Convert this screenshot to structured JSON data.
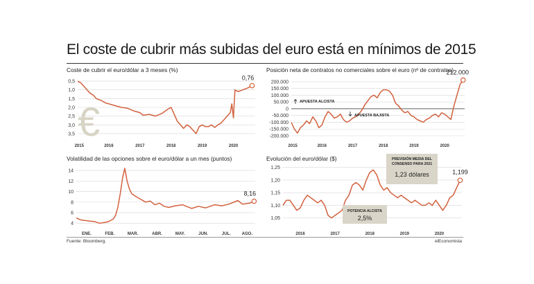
{
  "title": "El coste de cubrir más subidas del euro está en mínimos de 2015",
  "source": "Fuente: Bloomberg.",
  "brand": "elEconomista",
  "colors": {
    "series": "#d2603d",
    "grid": "#d6d6d6",
    "box": "#d9d5c8"
  },
  "chart_data": [
    {
      "type": "line",
      "title": "Coste de cubrir el euro/dólar a 3 meses (%)",
      "x_ticks": [
        "2015",
        "2016",
        "2017",
        "2018",
        "2019",
        "2020"
      ],
      "y_ticks": [
        "0,5",
        "1,0",
        "1,5",
        "2,0",
        "2,5",
        "3,0",
        "3,5"
      ],
      "ylim": [
        3.7,
        0.3
      ],
      "y_inverted": true,
      "x": [
        2015.0,
        2015.1,
        2015.2,
        2015.3,
        2015.4,
        2015.5,
        2015.6,
        2015.75,
        2015.9,
        2016.0,
        2016.2,
        2016.4,
        2016.6,
        2016.8,
        2017.0,
        2017.1,
        2017.3,
        2017.5,
        2017.7,
        2017.9,
        2018.0,
        2018.1,
        2018.2,
        2018.3,
        2018.4,
        2018.5,
        2018.6,
        2018.7,
        2018.8,
        2018.9,
        2019.0,
        2019.1,
        2019.2,
        2019.3,
        2019.4,
        2019.5,
        2019.6,
        2019.7,
        2019.8,
        2019.9,
        2019.95,
        2020.0,
        2020.05,
        2020.15,
        2020.3,
        2020.45,
        2020.6
      ],
      "values": [
        0.5,
        0.6,
        0.8,
        1.0,
        1.2,
        1.3,
        1.5,
        1.6,
        1.75,
        1.8,
        1.9,
        2.0,
        2.05,
        2.2,
        2.3,
        2.45,
        2.4,
        2.5,
        2.35,
        2.1,
        2.0,
        2.4,
        2.8,
        3.0,
        3.2,
        3.0,
        3.1,
        3.3,
        3.5,
        3.1,
        3.0,
        3.1,
        3.1,
        3.0,
        3.15,
        3.0,
        2.9,
        2.7,
        2.5,
        2.3,
        1.8,
        2.6,
        1.0,
        1.1,
        1.0,
        0.9,
        0.76
      ],
      "end_label": "0,76",
      "watermark": "€"
    },
    {
      "type": "line",
      "title": "Posición neta de contratos no comerciales sobre el euro (nº de contratos)",
      "x_ticks": [
        "2015",
        "2016",
        "2017",
        "2018",
        "2019",
        "2020"
      ],
      "y_ticks": [
        "200.000",
        "150.000",
        "100.000",
        "50.000",
        "0",
        "-50.000",
        "-100.000",
        "-150.000",
        "-200.000"
      ],
      "ylim": [
        -200000,
        220000
      ],
      "x": [
        2015.0,
        2015.1,
        2015.2,
        2015.3,
        2015.4,
        2015.5,
        2015.6,
        2015.7,
        2015.8,
        2015.9,
        2016.0,
        2016.1,
        2016.2,
        2016.3,
        2016.4,
        2016.5,
        2016.6,
        2016.7,
        2016.8,
        2016.9,
        2017.0,
        2017.1,
        2017.2,
        2017.3,
        2017.4,
        2017.5,
        2017.6,
        2017.7,
        2017.8,
        2017.9,
        2018.0,
        2018.1,
        2018.2,
        2018.3,
        2018.4,
        2018.5,
        2018.6,
        2018.7,
        2018.8,
        2018.9,
        2019.0,
        2019.1,
        2019.2,
        2019.3,
        2019.4,
        2019.5,
        2019.6,
        2019.7,
        2019.8,
        2019.9,
        2020.0,
        2020.1,
        2020.2,
        2020.3,
        2020.4,
        2020.5,
        2020.6
      ],
      "values": [
        -100000,
        -150000,
        -180000,
        -140000,
        -120000,
        -90000,
        -110000,
        -60000,
        -90000,
        -140000,
        -120000,
        -60000,
        -20000,
        -40000,
        -70000,
        -60000,
        -40000,
        -80000,
        -100000,
        -90000,
        -70000,
        -60000,
        -40000,
        -10000,
        30000,
        60000,
        90000,
        100000,
        80000,
        120000,
        140000,
        140000,
        130000,
        100000,
        40000,
        20000,
        -10000,
        -30000,
        -20000,
        -50000,
        -60000,
        -80000,
        -90000,
        -100000,
        -80000,
        -70000,
        -50000,
        -40000,
        -60000,
        -30000,
        -40000,
        -60000,
        -80000,
        20000,
        100000,
        180000,
        212000
      ],
      "end_label": "212.000",
      "annotations": [
        "APUESTA ALCISTA",
        "APUESTA BAJISTA"
      ]
    },
    {
      "type": "line",
      "title": "Volatilidad de las opciones sobre el euro/dólar a un mes (puntos)",
      "x_ticks": [
        "ENE.",
        "FEB.",
        "MAR.",
        "ABR.",
        "MAY.",
        "JUN.",
        "JUL.",
        "AGO."
      ],
      "y_ticks": [
        "14",
        "12",
        "10",
        "8",
        "6",
        "4"
      ],
      "ylim": [
        3.5,
        14.8
      ],
      "x": [
        0,
        0.2,
        0.4,
        0.6,
        0.8,
        1.0,
        1.2,
        1.4,
        1.6,
        1.7,
        1.8,
        1.9,
        2.0,
        2.1,
        2.2,
        2.3,
        2.4,
        2.6,
        2.8,
        3.0,
        3.2,
        3.4,
        3.6,
        3.8,
        4.0,
        4.3,
        4.6,
        5.0,
        5.3,
        5.6,
        6.0,
        6.3,
        6.6,
        7.0,
        7.2,
        7.5,
        7.7
      ],
      "values": [
        5.0,
        4.6,
        4.5,
        4.4,
        4.3,
        4.0,
        4.1,
        4.3,
        4.8,
        5.5,
        7.0,
        9.5,
        12.5,
        14.4,
        12.0,
        10.5,
        9.6,
        9.0,
        8.5,
        8.0,
        8.2,
        7.5,
        7.8,
        7.2,
        7.0,
        7.3,
        7.5,
        6.8,
        7.2,
        6.9,
        7.5,
        7.3,
        7.6,
        8.3,
        7.6,
        7.8,
        8.16
      ],
      "end_label": "8,16"
    },
    {
      "type": "line",
      "title": "Evolución del euro/dólar ($)",
      "x_ticks": [
        "2016",
        "2017",
        "2018",
        "2019",
        "2020"
      ],
      "y_ticks": [
        "1,25",
        "1,20",
        "1,15",
        "1,10",
        "1,05"
      ],
      "ylim": [
        1.03,
        1.26
      ],
      "x": [
        2015.5,
        2015.6,
        2015.7,
        2015.8,
        2015.9,
        2016.0,
        2016.1,
        2016.2,
        2016.3,
        2016.4,
        2016.5,
        2016.6,
        2016.7,
        2016.8,
        2016.9,
        2017.0,
        2017.1,
        2017.2,
        2017.3,
        2017.4,
        2017.5,
        2017.6,
        2017.7,
        2017.8,
        2017.9,
        2018.0,
        2018.1,
        2018.2,
        2018.3,
        2018.4,
        2018.5,
        2018.6,
        2018.7,
        2018.8,
        2018.9,
        2019.0,
        2019.1,
        2019.2,
        2019.3,
        2019.4,
        2019.5,
        2019.6,
        2019.7,
        2019.8,
        2019.9,
        2020.0,
        2020.1,
        2020.2,
        2020.3,
        2020.4,
        2020.5,
        2020.6
      ],
      "values": [
        1.1,
        1.12,
        1.12,
        1.1,
        1.08,
        1.09,
        1.12,
        1.14,
        1.13,
        1.12,
        1.11,
        1.12,
        1.1,
        1.06,
        1.05,
        1.06,
        1.07,
        1.08,
        1.12,
        1.14,
        1.18,
        1.19,
        1.18,
        1.16,
        1.2,
        1.23,
        1.24,
        1.22,
        1.18,
        1.16,
        1.17,
        1.15,
        1.14,
        1.13,
        1.14,
        1.13,
        1.12,
        1.11,
        1.12,
        1.11,
        1.1,
        1.1,
        1.11,
        1.1,
        1.12,
        1.1,
        1.08,
        1.1,
        1.13,
        1.14,
        1.17,
        1.199
      ],
      "end_label": "1,199",
      "box_forecast": [
        "PREVISIÓN MEDIA DEL",
        "CONSENSO PARA 2021",
        "1,23 dólares"
      ],
      "box_potential": [
        "POTENCIA ALCISTA",
        "2,5%"
      ]
    }
  ]
}
